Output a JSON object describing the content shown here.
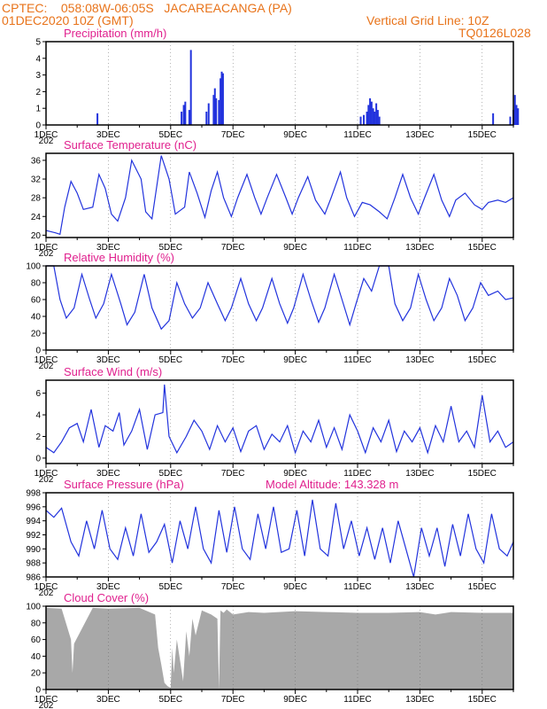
{
  "header": {
    "line1": "CPTEC:    058:08W-06:05S   JACAREACANGA (PA)",
    "line2": "01DEC2020 10Z (GMT)",
    "grid_note": "Vertical Grid Line: 10Z",
    "code": "TQ0126L028"
  },
  "colors": {
    "header": "#e8731a",
    "title": "#e0208e",
    "series": "#2233dd",
    "cloud": "#a8a8a8"
  },
  "x_axis": {
    "labels": [
      "1DEC",
      "3DEC",
      "5DEC",
      "7DEC",
      "9DEC",
      "11DEC",
      "13DEC",
      "15DEC"
    ],
    "label_days": [
      0,
      2,
      4,
      6,
      8,
      10,
      12,
      14
    ],
    "range_days": [
      0,
      15
    ],
    "first_label_year_fragment": "202"
  },
  "chart_data": [
    {
      "type": "bar",
      "title": "Precipitation  (mm/h)",
      "ylim": [
        0,
        5
      ],
      "yticks": [
        0,
        1,
        2,
        3,
        4,
        5
      ],
      "bars": [
        {
          "day": 1.65,
          "value": 0.7
        },
        {
          "day": 4.35,
          "value": 0.8
        },
        {
          "day": 4.42,
          "value": 1.2
        },
        {
          "day": 4.47,
          "value": 1.4
        },
        {
          "day": 4.6,
          "value": 0.9
        },
        {
          "day": 4.65,
          "value": 4.5
        },
        {
          "day": 5.15,
          "value": 0.8
        },
        {
          "day": 5.22,
          "value": 1.3
        },
        {
          "day": 5.38,
          "value": 1.8
        },
        {
          "day": 5.42,
          "value": 2.2
        },
        {
          "day": 5.46,
          "value": 1.6
        },
        {
          "day": 5.55,
          "value": 1.5
        },
        {
          "day": 5.6,
          "value": 2.8
        },
        {
          "day": 5.64,
          "value": 3.2
        },
        {
          "day": 5.68,
          "value": 3.1
        },
        {
          "day": 10.1,
          "value": 0.5
        },
        {
          "day": 10.2,
          "value": 0.6
        },
        {
          "day": 10.3,
          "value": 0.8
        },
        {
          "day": 10.35,
          "value": 1.2
        },
        {
          "day": 10.4,
          "value": 1.6
        },
        {
          "day": 10.45,
          "value": 1.4
        },
        {
          "day": 10.5,
          "value": 1.0
        },
        {
          "day": 10.55,
          "value": 0.8
        },
        {
          "day": 10.6,
          "value": 1.3
        },
        {
          "day": 10.65,
          "value": 0.9
        },
        {
          "day": 10.7,
          "value": 0.5
        },
        {
          "day": 14.35,
          "value": 0.7
        },
        {
          "day": 14.9,
          "value": 0.5
        },
        {
          "day": 15.0,
          "value": 0.9
        },
        {
          "day": 15.05,
          "value": 1.8
        },
        {
          "day": 15.1,
          "value": 1.2
        },
        {
          "day": 15.15,
          "value": 1.0
        }
      ]
    },
    {
      "type": "line",
      "title": "Surface Temperature (nC)",
      "ylim": [
        19.5,
        37.5
      ],
      "yticks": [
        20,
        24,
        28,
        32,
        36
      ],
      "x": [
        0,
        0.3,
        0.45,
        0.6,
        0.8,
        1.0,
        1.2,
        1.5,
        1.7,
        1.9,
        2.1,
        2.3,
        2.55,
        2.75,
        3.05,
        3.2,
        3.4,
        3.7,
        3.95,
        4.15,
        4.45,
        4.6,
        4.85,
        5.1,
        5.3,
        5.5,
        5.7,
        5.95,
        6.15,
        6.45,
        6.7,
        6.9,
        7.1,
        7.4,
        7.7,
        7.9,
        8.1,
        8.4,
        8.65,
        8.95,
        9.15,
        9.45,
        9.65,
        9.9,
        10.15,
        10.4,
        10.7,
        10.95,
        11.2,
        11.45,
        11.7,
        11.95,
        12.15,
        12.45,
        12.7,
        12.95,
        13.15,
        13.45,
        13.75,
        14.0,
        14.2,
        14.5,
        14.75,
        15.0
      ],
      "y": [
        21,
        20.5,
        20.2,
        26,
        31.5,
        29,
        25.5,
        26,
        33,
        30,
        24.5,
        23,
        28,
        36,
        32,
        25,
        23.5,
        37,
        32,
        24.5,
        26,
        33.5,
        29,
        23.8,
        29.5,
        33.5,
        28,
        24,
        28,
        33,
        28,
        24.5,
        28,
        33,
        28,
        24.5,
        28,
        32.5,
        27.5,
        24.5,
        28,
        33.5,
        28,
        24,
        27,
        26.5,
        25,
        23.5,
        28,
        33,
        28,
        24.5,
        28,
        33,
        27.5,
        24,
        27.5,
        29,
        26.5,
        25.5,
        27,
        27.5,
        27,
        28
      ]
    },
    {
      "type": "line",
      "title": "Relative Humidity (%)",
      "ylim": [
        0,
        100
      ],
      "yticks": [
        0,
        20,
        40,
        60,
        80,
        100
      ],
      "x": [
        0,
        0.25,
        0.45,
        0.65,
        0.9,
        1.15,
        1.4,
        1.6,
        1.85,
        2.1,
        2.4,
        2.6,
        2.85,
        3.15,
        3.4,
        3.7,
        3.95,
        4.2,
        4.45,
        4.7,
        4.95,
        5.2,
        5.5,
        5.75,
        5.95,
        6.25,
        6.5,
        6.75,
        6.95,
        7.25,
        7.5,
        7.75,
        7.95,
        8.25,
        8.5,
        8.75,
        8.95,
        9.25,
        9.5,
        9.75,
        9.95,
        10.2,
        10.45,
        10.7,
        11.0,
        11.2,
        11.45,
        11.7,
        11.95,
        12.2,
        12.45,
        12.7,
        12.95,
        13.2,
        13.45,
        13.7,
        13.95,
        14.2,
        14.5,
        14.75,
        15.0
      ],
      "y": [
        100,
        100,
        60,
        38,
        50,
        90,
        60,
        38,
        55,
        90,
        55,
        30,
        45,
        90,
        50,
        25,
        35,
        80,
        55,
        38,
        50,
        80,
        55,
        35,
        50,
        85,
        55,
        35,
        50,
        85,
        55,
        32,
        50,
        90,
        60,
        33,
        50,
        90,
        60,
        30,
        55,
        85,
        70,
        100,
        100,
        55,
        35,
        50,
        90,
        60,
        35,
        50,
        85,
        65,
        35,
        50,
        80,
        65,
        70,
        60,
        62
      ]
    },
    {
      "type": "line",
      "title": "Surface Wind (m/s)",
      "ylim": [
        -0.5,
        7.2
      ],
      "yticks": [
        0,
        2,
        4,
        6
      ],
      "x": [
        0,
        0.25,
        0.5,
        0.75,
        1.0,
        1.2,
        1.45,
        1.7,
        1.9,
        2.15,
        2.35,
        2.5,
        2.75,
        3.0,
        3.25,
        3.5,
        3.75,
        3.8,
        3.95,
        4.2,
        4.5,
        4.75,
        5.0,
        5.25,
        5.5,
        5.75,
        6.0,
        6.25,
        6.5,
        6.75,
        7.0,
        7.25,
        7.5,
        7.75,
        8.0,
        8.25,
        8.5,
        8.75,
        9.0,
        9.25,
        9.5,
        9.75,
        10.0,
        10.25,
        10.5,
        10.75,
        11.0,
        11.25,
        11.5,
        11.75,
        12.0,
        12.25,
        12.5,
        12.75,
        13.0,
        13.25,
        13.5,
        13.75,
        14.0,
        14.25,
        14.5,
        14.75,
        15.0
      ],
      "y": [
        1.0,
        0.5,
        1.5,
        2.8,
        3.2,
        1.5,
        4.5,
        1.0,
        3.0,
        2.5,
        4.2,
        1.2,
        2.5,
        4.5,
        0.8,
        4.0,
        4.2,
        6.8,
        2.0,
        0.5,
        2.0,
        3.5,
        2.5,
        0.8,
        3.0,
        1.5,
        2.8,
        0.6,
        2.5,
        3.0,
        0.8,
        2.2,
        1.5,
        3.0,
        0.5,
        2.5,
        1.5,
        3.5,
        1.0,
        2.8,
        0.8,
        4.0,
        2.5,
        0.5,
        2.8,
        1.5,
        3.5,
        0.6,
        2.5,
        1.5,
        2.8,
        0.5,
        3.0,
        1.5,
        4.8,
        1.5,
        2.5,
        1.0,
        5.8,
        1.5,
        2.5,
        1.0,
        1.5
      ]
    },
    {
      "type": "line",
      "title": "Surface Pressure (hPa)",
      "annotation": "Model Altitude: 143.328  m",
      "ylim": [
        986,
        998
      ],
      "yticks": [
        986,
        988,
        990,
        992,
        994,
        996,
        998
      ],
      "x": [
        0,
        0.25,
        0.5,
        0.8,
        1.05,
        1.3,
        1.55,
        1.8,
        2.05,
        2.3,
        2.55,
        2.8,
        3.05,
        3.3,
        3.55,
        3.8,
        4.05,
        4.3,
        4.55,
        4.8,
        5.05,
        5.3,
        5.55,
        5.8,
        6.05,
        6.3,
        6.55,
        6.8,
        7.05,
        7.3,
        7.55,
        7.8,
        8.05,
        8.3,
        8.55,
        8.8,
        9.05,
        9.3,
        9.55,
        9.8,
        10.05,
        10.3,
        10.55,
        10.8,
        11.05,
        11.3,
        11.55,
        11.8,
        12.05,
        12.3,
        12.55,
        12.8,
        13.05,
        13.3,
        13.55,
        13.8,
        14.05,
        14.3,
        14.55,
        14.8,
        15.0
      ],
      "y": [
        995.5,
        994.5,
        995.8,
        991,
        989,
        994,
        990,
        995.5,
        990,
        988.5,
        993,
        989,
        995,
        989.5,
        991,
        993.5,
        988,
        994,
        990,
        996,
        990,
        988,
        995.5,
        989.5,
        996,
        990,
        988.5,
        995,
        990,
        996,
        989.5,
        990,
        995.5,
        989,
        997,
        990,
        989,
        996.5,
        990,
        994,
        989,
        993,
        988.5,
        993,
        988,
        994,
        990,
        986,
        993,
        989,
        993,
        987.5,
        993.5,
        989,
        995,
        990,
        988,
        995,
        990,
        989,
        991
      ]
    },
    {
      "type": "area",
      "title": "Cloud Cover (%)",
      "ylim": [
        0,
        100
      ],
      "yticks": [
        0,
        20,
        40,
        60,
        80,
        100
      ],
      "x": [
        0,
        0.5,
        0.8,
        0.85,
        0.9,
        1.5,
        2.0,
        3.0,
        3.5,
        3.6,
        3.7,
        3.8,
        3.9,
        4.0,
        4.05,
        4.1,
        4.2,
        4.3,
        4.4,
        4.5,
        4.6,
        4.7,
        4.8,
        5.0,
        5.3,
        5.5,
        5.55,
        5.6,
        5.7,
        5.8,
        6.0,
        6.5,
        7.0,
        8.0,
        9.0,
        10.0,
        11.0,
        12.0,
        12.5,
        13.0,
        14.0,
        15.0
      ],
      "y": [
        98,
        97,
        60,
        20,
        55,
        98,
        97,
        98,
        90,
        50,
        30,
        8,
        4,
        2,
        50,
        20,
        60,
        35,
        10,
        70,
        40,
        85,
        65,
        95,
        90,
        85,
        0,
        95,
        92,
        96,
        90,
        93,
        92,
        94,
        93,
        92,
        92,
        93,
        90,
        93,
        92,
        92
      ]
    }
  ]
}
